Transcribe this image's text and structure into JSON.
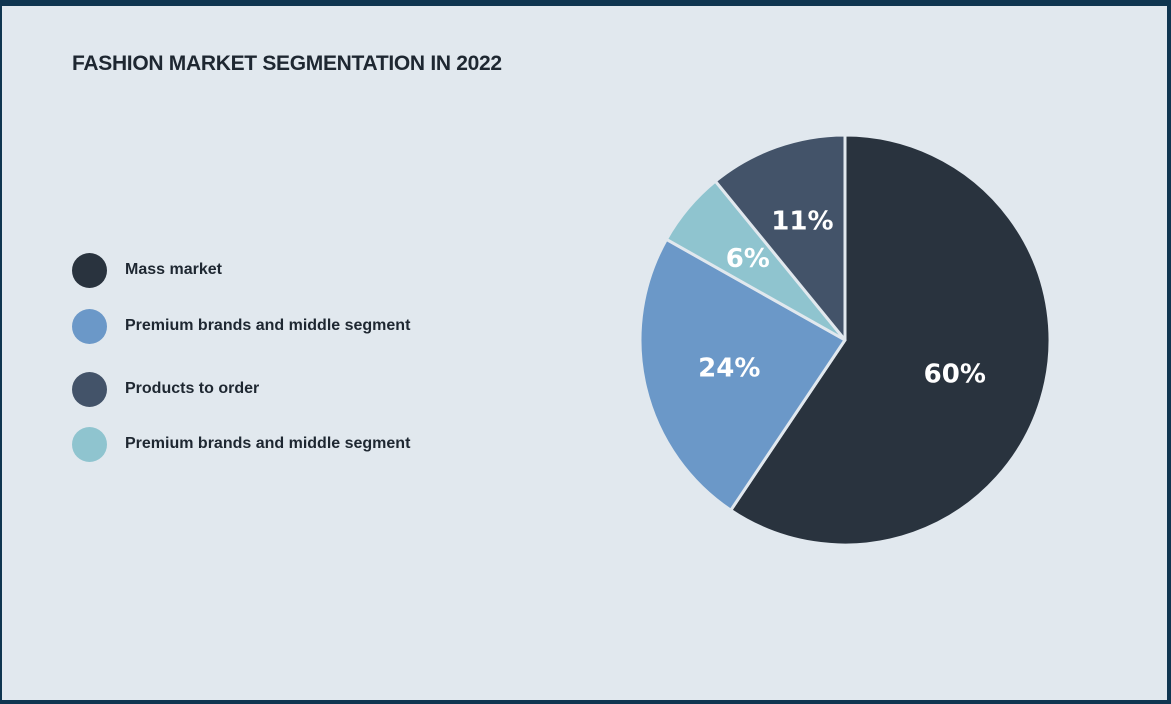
{
  "title": "FASHION MARKET SEGMENTATION IN 2022",
  "chart_data": {
    "type": "pie",
    "title": "FASHION MARKET SEGMENTATION IN 2022",
    "legend_position": "left",
    "categories": [
      "Mass market",
      "Premium brands and middle segment",
      "Products to order",
      "Premium brands and middle segment"
    ],
    "values": [
      60,
      24,
      11,
      6
    ],
    "slices": [
      {
        "name": "Mass market",
        "value": 60,
        "label": "60%",
        "color": "#29333e"
      },
      {
        "name": "Premium brands and middle segment",
        "value": 24,
        "label": "24%",
        "color": "#6b98c8"
      },
      {
        "name": "Premium brands and middle segment",
        "value": 6,
        "label": "6%",
        "color": "#8fc4cf"
      },
      {
        "name": "Products to order",
        "value": 11,
        "label": "11%",
        "color": "#435369"
      }
    ]
  },
  "legend": [
    {
      "label": "Mass market",
      "color": "#29333e"
    },
    {
      "label": "Premium brands and middle segment",
      "color": "#6b98c8"
    },
    {
      "label": "Products to order",
      "color": "#435369"
    },
    {
      "label": "Premium brands and middle segment",
      "color": "#8fc4cf"
    }
  ]
}
